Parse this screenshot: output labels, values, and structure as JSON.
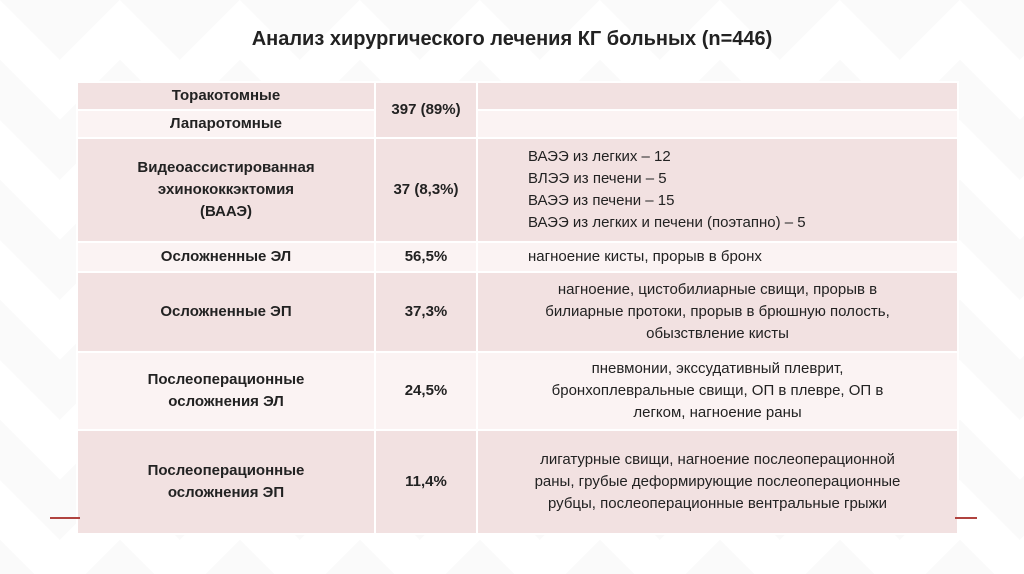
{
  "title": "Анализ хирургического лечения КГ больных (n=446)",
  "rows": [
    {
      "label": "Торакотомные",
      "value": "397 (89%)",
      "note": ""
    },
    {
      "label": "Лапаротомные",
      "value": "",
      "note": ""
    },
    {
      "label_lines": [
        "Видеоассистированная",
        "эхинококкэктомия",
        "(ВААЭ)"
      ],
      "value": "37 (8,3%)",
      "note_lines": [
        "ВАЭЭ из легких – 12",
        "ВЛЭЭ из печени – 5",
        "ВАЭЭ из печени – 15",
        "ВАЭЭ из легких и печени (поэтапно) – 5"
      ]
    },
    {
      "label": "Осложненные ЭЛ",
      "value": "56,5%",
      "note": "нагноение кисты, прорыв в бронх"
    },
    {
      "label": "Осложненные ЭП",
      "value": "37,3%",
      "note_lines": [
        "нагноение, цистобилиарные свищи, прорыв в",
        "билиарные протоки, прорыв в брюшную полость,",
        "обызствление кисты"
      ]
    },
    {
      "label_lines": [
        "Послеоперационные",
        "осложнения ЭЛ"
      ],
      "value": "24,5%",
      "note_lines": [
        "пневмонии, экссудативный плеврит,",
        "бронхоплевральные свищи, ОП в плевре, ОП в",
        "легком, нагноение раны"
      ]
    },
    {
      "label_lines": [
        "Послеоперационные",
        "осложнения ЭП"
      ],
      "value": "11,4%",
      "note_lines": [
        "лигатурные свищи, нагноение послеоперационной",
        "раны, грубые деформирующие послеоперационные",
        "рубцы, послеоперационные вентральные грыжи"
      ]
    }
  ]
}
